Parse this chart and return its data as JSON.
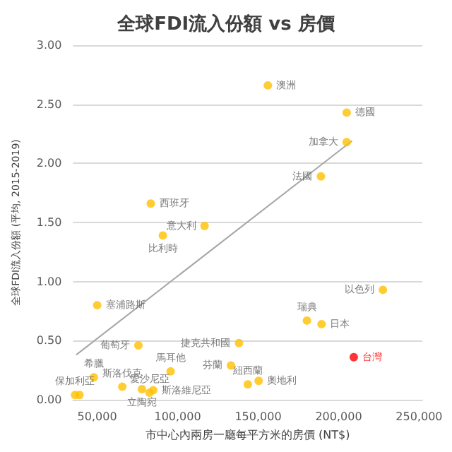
{
  "chart_data": {
    "type": "scatter",
    "title": "全球FDI流入份額 vs 房價",
    "xlabel": "市中心內兩房一廳每平方米的房價 (NT$)",
    "ylabel": "全球FDI流入份額 (平均, 2015-2019)",
    "xlim": [
      35000,
      252000
    ],
    "ylim": [
      0,
      3
    ],
    "xticks": [
      {
        "value": 50000,
        "label": "50,000"
      },
      {
        "value": 100000,
        "label": "100,000"
      },
      {
        "value": 150000,
        "label": "150,000"
      },
      {
        "value": 200000,
        "label": "200,000"
      },
      {
        "value": 250000,
        "label": "250,000"
      }
    ],
    "yticks": [
      {
        "value": 0,
        "label": "0.00"
      },
      {
        "value": 0.5,
        "label": "0.50"
      },
      {
        "value": 1,
        "label": "1.00"
      },
      {
        "value": 1.5,
        "label": "1.50"
      },
      {
        "value": 2,
        "label": "2.00"
      },
      {
        "value": 2.5,
        "label": "2.50"
      },
      {
        "value": 3,
        "label": "3.00"
      }
    ],
    "grid": "y",
    "marker": "circle",
    "series": [
      {
        "color": "#ffc000",
        "x": [
          156000,
          205000,
          205000,
          189000,
          83300,
          116700,
          90800,
          227500,
          180300,
          189400,
          209400,
          50000,
          75600,
          138100,
          95600,
          133100,
          47900,
          65600,
          77800,
          82500,
          84800,
          143600,
          150300,
          36250,
          39000
        ],
        "values": [
          2.66,
          2.43,
          2.18,
          1.89,
          1.66,
          1.47,
          1.39,
          0.93,
          0.67,
          0.64,
          0.36,
          0.8,
          0.46,
          0.48,
          0.24,
          0.29,
          0.19,
          0.11,
          0.09,
          0.06,
          0.08,
          0.13,
          0.16,
          0.04,
          0.04
        ],
        "colors": [
          "#ffc000",
          "#ffc000",
          "#ffc000",
          "#ffc000",
          "#ffc000",
          "#ffc000",
          "#ffc000",
          "#ffc000",
          "#ffc000",
          "#ffc000",
          "#ff0000",
          "#ffc000",
          "#ffc000",
          "#ffc000",
          "#ffc000",
          "#ffc000",
          "#ffc000",
          "#ffc000",
          "#ffc000",
          "#ffc000",
          "#ffc000",
          "#ffc000",
          "#ffc000",
          "#ffc000",
          "#ffc000"
        ],
        "value_labels": [
          "澳洲",
          "德國",
          "加拿大",
          "法國",
          "西班牙",
          "意大利",
          "比利時",
          "以色列",
          "瑞典",
          "日本",
          "台灣",
          "塞浦路斯",
          "葡萄牙",
          "捷克共和國",
          "馬耳他",
          "芬蘭",
          "希臘",
          "斯洛伐克",
          "立陶宛",
          "愛沙尼亞",
          "斯洛維尼亞",
          "紐西蘭",
          "奧地利",
          "保加利亞",
          null
        ]
      },
      {
        "type": "line",
        "color": "#a6a6a6",
        "x": [
          37000,
          208300
        ],
        "values": [
          0.38,
          2.19
        ],
        "marker": "none"
      }
    ]
  }
}
